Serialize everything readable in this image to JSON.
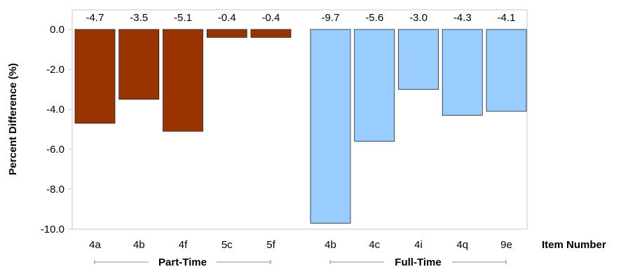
{
  "chart_data": {
    "type": "bar",
    "ylabel": "Percent Difference (%)",
    "xlabel": "Item Number",
    "ylim": [
      -10,
      0
    ],
    "yticks": [
      "0.0",
      "-2.0",
      "-4.0",
      "-6.0",
      "-8.0",
      "-10.0"
    ],
    "ytick_values": [
      0,
      -2,
      -4,
      -6,
      -8,
      -10
    ],
    "grid": false,
    "groups": [
      {
        "name": "Part-Time",
        "color": "#993300",
        "categories": [
          "4a",
          "4b",
          "4f",
          "5c",
          "5f"
        ],
        "values": [
          -4.7,
          -3.5,
          -5.1,
          -0.4,
          -0.4
        ],
        "value_labels": [
          "-4.7",
          "-3.5",
          "-5.1",
          "-0.4",
          "-0.4"
        ]
      },
      {
        "name": "Full-Time",
        "color": "#99ccff",
        "categories": [
          "4b",
          "4c",
          "4i",
          "4q",
          "9e"
        ],
        "values": [
          -9.7,
          -5.6,
          -3.0,
          -4.3,
          -4.1
        ],
        "value_labels": [
          "-9.7",
          "-5.6",
          "-3.0",
          "-4.3",
          "-4.1"
        ]
      }
    ]
  }
}
